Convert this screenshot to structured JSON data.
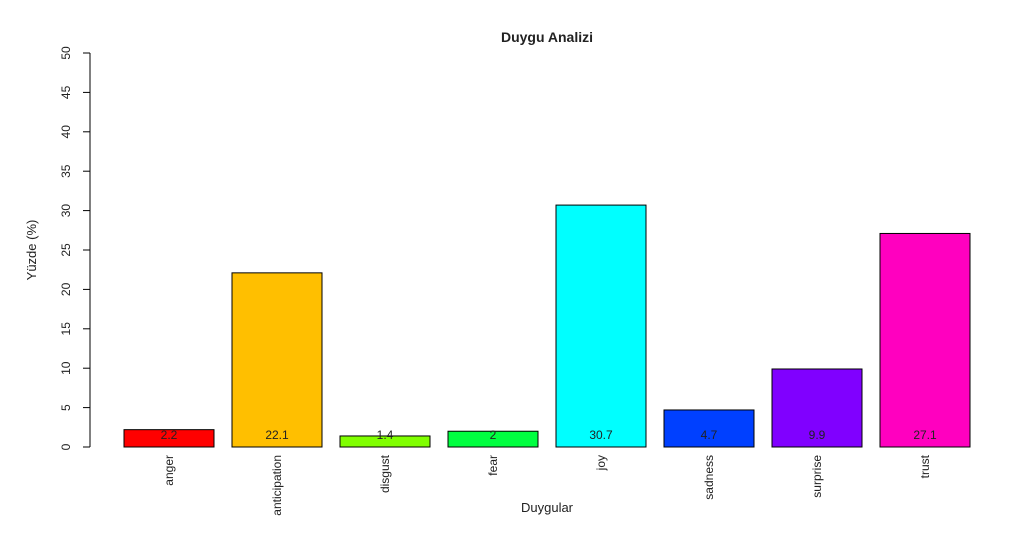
{
  "chart_data": {
    "type": "bar",
    "title": "Duygu Analizi",
    "x_label": "Duygular",
    "y_label": "Yüzde (%)",
    "categories": [
      "anger",
      "anticipation",
      "disgust",
      "fear",
      "joy",
      "sadness",
      "surprise",
      "trust"
    ],
    "values": [
      2.2,
      22.1,
      1.4,
      2,
      30.7,
      4.7,
      9.9,
      27.1
    ],
    "colors": [
      "#FF0000",
      "#FFBF00",
      "#80FF00",
      "#00FF40",
      "#00FFFF",
      "#0040FF",
      "#8000FF",
      "#FF00BF"
    ],
    "ylim": [
      0,
      50
    ],
    "yticks": [
      0,
      5,
      10,
      15,
      20,
      25,
      30,
      35,
      40,
      45,
      50
    ],
    "grid": false
  }
}
